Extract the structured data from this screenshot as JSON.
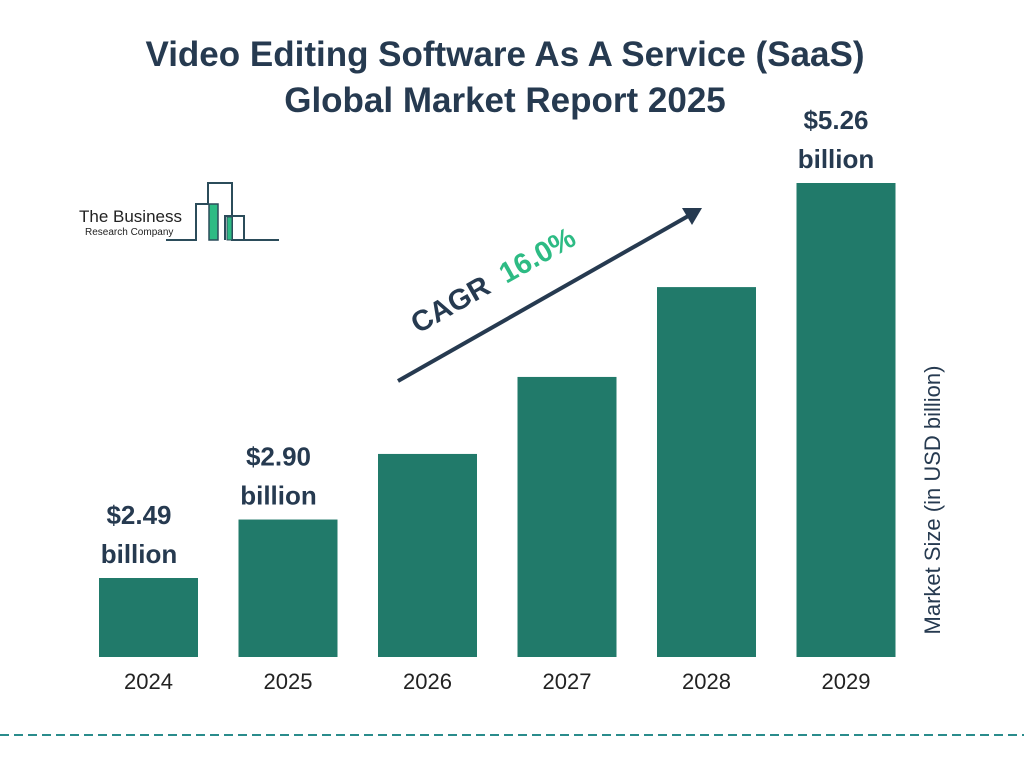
{
  "title_line1": "Video Editing Software As A Service (SaaS)",
  "title_line2": "Global Market Report 2025",
  "logo": {
    "line1": "The Business",
    "line2": "Research Company"
  },
  "colors": {
    "bar": "#217a6a",
    "title": "#263a50",
    "cagr_value": "#2dbb84",
    "divider": "#2a8c8c",
    "logo_accent": "#2dbb84",
    "logo_line": "#2b4c5a"
  },
  "chart_data": {
    "type": "bar",
    "title": "Video Editing Software As A Service (SaaS) Global Market Report 2025",
    "categories": [
      "2024",
      "2025",
      "2026",
      "2027",
      "2028",
      "2029"
    ],
    "values": [
      2.49,
      2.9,
      3.36,
      3.9,
      4.53,
      5.26
    ],
    "data_labels": [
      {
        "category": "2024",
        "line1": "$2.49",
        "line2": "billion"
      },
      {
        "category": "2025",
        "line1": "$2.90",
        "line2": "billion"
      },
      {
        "category": "2029",
        "line1": "$5.26",
        "line2": "billion"
      }
    ],
    "ylabel": "Market Size (in USD billion)",
    "xlabel": "",
    "grid": false,
    "annotation": {
      "label": "CAGR",
      "value": "16.0%"
    }
  }
}
